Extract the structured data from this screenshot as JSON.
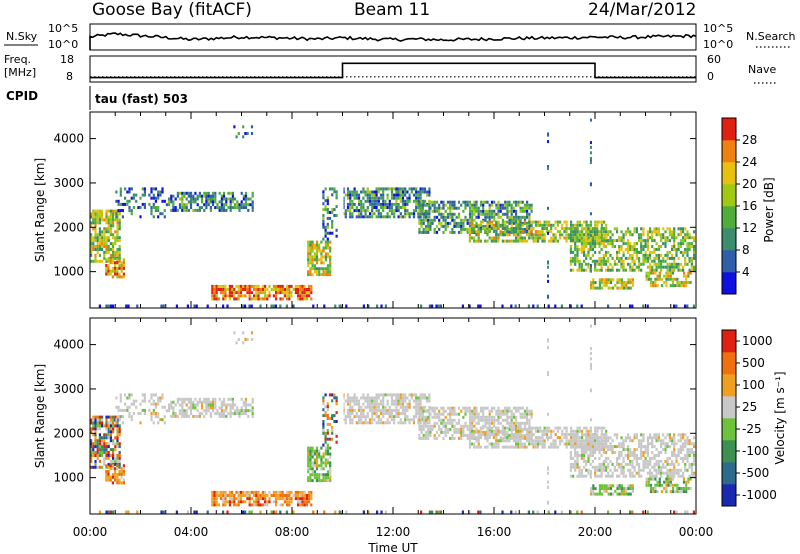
{
  "header": {
    "station": "Goose Bay (fitACF)",
    "beam": "Beam 11",
    "date": "24/Mar/2012"
  },
  "nsky_panel": {
    "left_label": "N.Sky",
    "left_ticks": [
      "10^5",
      "10^0"
    ],
    "right_label": "N.Search",
    "right_ticks": [
      "10^5",
      "10^0"
    ],
    "series_nsky": [
      0.5,
      0.62,
      0.55,
      0.48,
      0.4,
      0.45,
      0.5,
      0.48,
      0.45,
      0.42,
      0.47,
      0.43,
      0.4,
      0.42,
      0.39,
      0.41,
      0.43,
      0.45,
      0.46,
      0.47,
      0.5,
      0.48,
      0.5,
      0.52,
      0.55
    ]
  },
  "freq_panel": {
    "left_label_1": "Freq.",
    "left_label_2": "[MHz]",
    "left_ticks": [
      "18",
      "8"
    ],
    "right_label": "Nave",
    "right_ticks": [
      "60",
      "0"
    ],
    "cpid_label": "CPID",
    "cpid_value": "tau (fast) 503",
    "freq_steps": [
      {
        "t0": 0,
        "t1": 10,
        "value": 10
      },
      {
        "t0": 10,
        "t1": 20,
        "value": 16.5
      },
      {
        "t0": 20,
        "t1": 24,
        "value": 10
      }
    ],
    "nave": 12
  },
  "chart_data": [
    {
      "type": "heatmap",
      "quantity": "power",
      "xlabel": "",
      "ylabel": "Slant Range [km]",
      "x_range_hours": [
        0,
        24
      ],
      "ylim": [
        180,
        4600
      ],
      "yticks": [
        "1000",
        "2000",
        "3000",
        "4000"
      ],
      "colorbar_label": "Power [dB]",
      "colorbar_ticks": [
        "4",
        "8",
        "12",
        "16",
        "20",
        "24",
        "28"
      ],
      "colorbar_colors": [
        "#1010e0",
        "#2e5fa8",
        "#3c8c6e",
        "#4fae3a",
        "#a3c814",
        "#e8c010",
        "#f08010",
        "#e02010"
      ]
    },
    {
      "type": "heatmap",
      "quantity": "velocity",
      "xlabel": "Time UT",
      "ylabel": "Slant Range [km]",
      "x_range_hours": [
        0,
        24
      ],
      "ylim": [
        180,
        4600
      ],
      "yticks": [
        "1000",
        "2000",
        "3000",
        "4000"
      ],
      "xticks": [
        "00:00",
        "04:00",
        "08:00",
        "12:00",
        "16:00",
        "20:00",
        "00:00"
      ],
      "colorbar_label": "Velocity [m s⁻¹]",
      "colorbar_ticks": [
        "1000",
        "500",
        "100",
        "25",
        "-25",
        "-100",
        "-500",
        "-1000"
      ],
      "colorbar_colors": [
        "#1a2ab0",
        "#2e6a8c",
        "#3c9050",
        "#6cc23a",
        "#c8c8c8",
        "#f0a020",
        "#f07010",
        "#e02010"
      ]
    }
  ],
  "scatter_regions": [
    {
      "t0": 0.0,
      "t1": 1.2,
      "r0": 1200,
      "r1": 2400,
      "density": 0.75,
      "pwr": 0.55,
      "vel": "mix"
    },
    {
      "t0": 0.6,
      "t1": 1.4,
      "r0": 850,
      "r1": 1300,
      "density": 0.7,
      "pwr": 0.75,
      "vel": "neg"
    },
    {
      "t0": 1.0,
      "t1": 3.0,
      "r0": 2200,
      "r1": 2900,
      "density": 0.35,
      "pwr": 0.2,
      "vel": "gray"
    },
    {
      "t0": 3.0,
      "t1": 6.5,
      "r0": 2350,
      "r1": 2800,
      "density": 0.6,
      "pwr": 0.3,
      "vel": "gray"
    },
    {
      "t0": 4.8,
      "t1": 8.8,
      "r0": 350,
      "r1": 700,
      "density": 0.8,
      "pwr": 0.8,
      "vel": "neg"
    },
    {
      "t0": 8.6,
      "t1": 9.6,
      "r0": 900,
      "r1": 1700,
      "density": 0.75,
      "pwr": 0.6,
      "vel": "pos"
    },
    {
      "t0": 9.2,
      "t1": 9.8,
      "r0": 1700,
      "r1": 2900,
      "density": 0.4,
      "pwr": 0.3,
      "vel": "mix"
    },
    {
      "t0": 10.0,
      "t1": 13.5,
      "r0": 2200,
      "r1": 2900,
      "density": 0.7,
      "pwr": 0.3,
      "vel": "gray"
    },
    {
      "t0": 13.0,
      "t1": 17.5,
      "r0": 1850,
      "r1": 2600,
      "density": 0.65,
      "pwr": 0.35,
      "vel": "gray"
    },
    {
      "t0": 15.0,
      "t1": 20.5,
      "r0": 1650,
      "r1": 2150,
      "density": 0.7,
      "pwr": 0.55,
      "vel": "gray"
    },
    {
      "t0": 19.0,
      "t1": 24.0,
      "r0": 1000,
      "r1": 2000,
      "density": 0.6,
      "pwr": 0.5,
      "vel": "gray"
    },
    {
      "t0": 19.8,
      "t1": 21.5,
      "r0": 600,
      "r1": 850,
      "density": 0.7,
      "pwr": 0.55,
      "vel": "pos"
    },
    {
      "t0": 22.0,
      "t1": 23.8,
      "r0": 650,
      "r1": 1000,
      "density": 0.6,
      "pwr": 0.6,
      "vel": "pos"
    },
    {
      "t0": 0.0,
      "t1": 24.0,
      "r0": 180,
      "r1": 260,
      "density": 0.25,
      "pwr": 0.1,
      "vel": "mix"
    },
    {
      "t0": 5.5,
      "t1": 6.5,
      "r0": 4000,
      "r1": 4300,
      "density": 0.1,
      "pwr": 0.2,
      "vel": "gray"
    }
  ]
}
